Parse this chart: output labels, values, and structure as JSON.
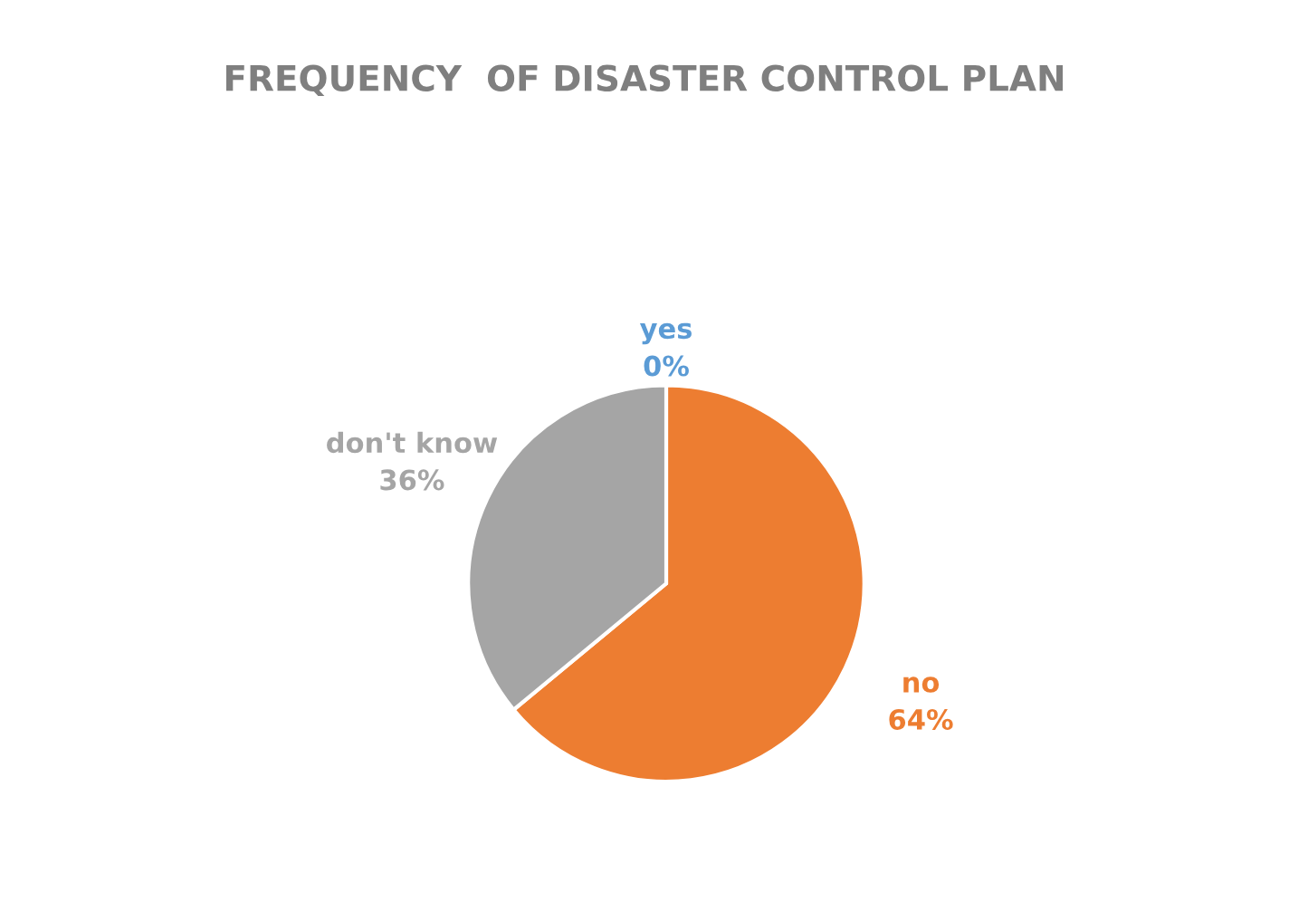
{
  "chart_data": {
    "type": "pie",
    "title": "FREQUENCY  OF DISASTER CONTROL PLAN",
    "categories": [
      "yes",
      "no",
      "don't know"
    ],
    "values": [
      0,
      64,
      36
    ],
    "colors": [
      "#5b9bd5",
      "#ed7d31",
      "#a5a5a5"
    ],
    "value_labels": [
      "0%",
      "64%",
      "36%"
    ],
    "legend": false
  }
}
